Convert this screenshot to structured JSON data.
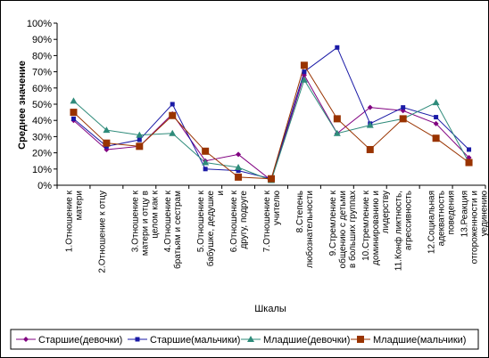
{
  "chart_data": {
    "type": "line",
    "xlabel": "Шкалы",
    "ylabel": "Среднее значение",
    "ylim": [
      0,
      100
    ],
    "yticks": [
      "0%",
      "10%",
      "20%",
      "30%",
      "40%",
      "50%",
      "60%",
      "70%",
      "80%",
      "90%",
      "100%"
    ],
    "grid": false,
    "legend_position": "bottom",
    "categories": [
      [
        "1.Отношение к",
        "матери"
      ],
      [
        "2.Отношение к отцу"
      ],
      [
        "3.Отношение к",
        "матери и отцу в",
        "целом как к"
      ],
      [
        "4.Отношение к",
        "братьям и сестрам"
      ],
      [
        "5.Отношение к",
        "бабушке, дедушке",
        "и"
      ],
      [
        "6.Отношение к",
        "другу, подруге"
      ],
      [
        "7.Отношение к",
        "учителю"
      ],
      [
        "8.Степень",
        "любознательности"
      ],
      [
        "9.Стремление к",
        "общению с детьми",
        "в больших группах"
      ],
      [
        "10.Стремление к",
        "доминированию и",
        "лидерству"
      ],
      [
        "11.Конф ликтность,",
        "агрессивность"
      ],
      [
        "12.Социальная",
        "адекватность",
        "поведения"
      ],
      [
        "13.Реакция",
        "отгороженности и",
        "уединению"
      ]
    ],
    "series": [
      {
        "name": "Старшие(девочки)",
        "color": "#800080",
        "marker": "diamond",
        "values": [
          40,
          22,
          24,
          44,
          15,
          19,
          3,
          68,
          32,
          48,
          46,
          38,
          17
        ]
      },
      {
        "name": "Старшие(мальчики)",
        "color": "#1a1aa6",
        "marker": "square",
        "values": [
          41,
          24,
          28,
          50,
          10,
          9,
          4,
          70,
          85,
          38,
          48,
          42,
          22
        ]
      },
      {
        "name": "Младшие(девочки)",
        "color": "#2e8b7a",
        "marker": "triangle",
        "values": [
          52,
          34,
          31,
          32,
          14,
          11,
          3,
          65,
          32,
          37,
          41,
          51,
          14
        ]
      },
      {
        "name": "Младшие(мальчики)",
        "color": "#993300",
        "marker": "bigsquare",
        "values": [
          45,
          26,
          24,
          43,
          21,
          5,
          4,
          74,
          41,
          22,
          41,
          29,
          14
        ]
      }
    ]
  }
}
